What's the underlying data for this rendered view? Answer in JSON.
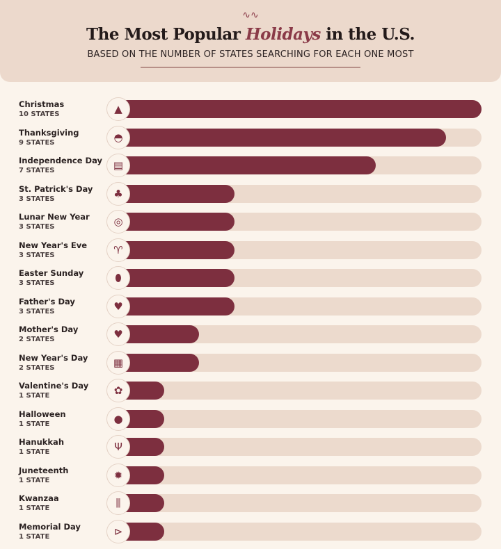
{
  "header": {
    "title_pre": "The Most Popular ",
    "title_em": "Holidays",
    "title_post": " in the U.S.",
    "subtitle": "BASED ON THE NUMBER OF STATES SEARCHING FOR EACH ONE MOST"
  },
  "colors": {
    "bar": "#7d2f3f",
    "track": "#ecdacd",
    "header": "#ecd9cc",
    "accent": "#8a3a48"
  },
  "chart_data": {
    "type": "bar",
    "orientation": "horizontal",
    "title": "The Most Popular Holidays in the U.S.",
    "subtitle": "BASED ON THE NUMBER OF STATES SEARCHING FOR EACH ONE MOST",
    "xlim": [
      0,
      10
    ],
    "categories": [
      "Christmas",
      "Thanksgiving",
      "Independence Day",
      "St. Patrick's Day",
      "Lunar New Year",
      "New Year's Eve",
      "Easter Sunday",
      "Father's Day",
      "Mother's Day",
      "New Year's Day",
      "Valentine's Day",
      "Halloween",
      "Hanukkah",
      "Juneteenth",
      "Kwanzaa",
      "Memorial Day"
    ],
    "values": [
      10,
      9,
      7,
      3,
      3,
      3,
      3,
      3,
      2,
      2,
      1,
      1,
      1,
      1,
      1,
      1
    ],
    "value_labels": [
      "10 STATES",
      "9 STATES",
      "7 STATES",
      "3 STATES",
      "3 STATES",
      "3 STATES",
      "3 STATES",
      "3 STATES",
      "2 STATES",
      "2 STATES",
      "1 STATE",
      "1 STATE",
      "1 STATE",
      "1 STATE",
      "1 STATE",
      "1 STATE"
    ],
    "icons": [
      "tree-icon",
      "turkey-icon",
      "flag-icon",
      "shamrock-icon",
      "lantern-icon",
      "champagne-icon",
      "easter-egg-icon",
      "heart-dad-icon",
      "heart-mom-icon",
      "calendar-icon",
      "rose-icon",
      "pumpkin-icon",
      "menorah-icon",
      "sun-icon",
      "kinara-icon",
      "trumpet-icon"
    ]
  }
}
